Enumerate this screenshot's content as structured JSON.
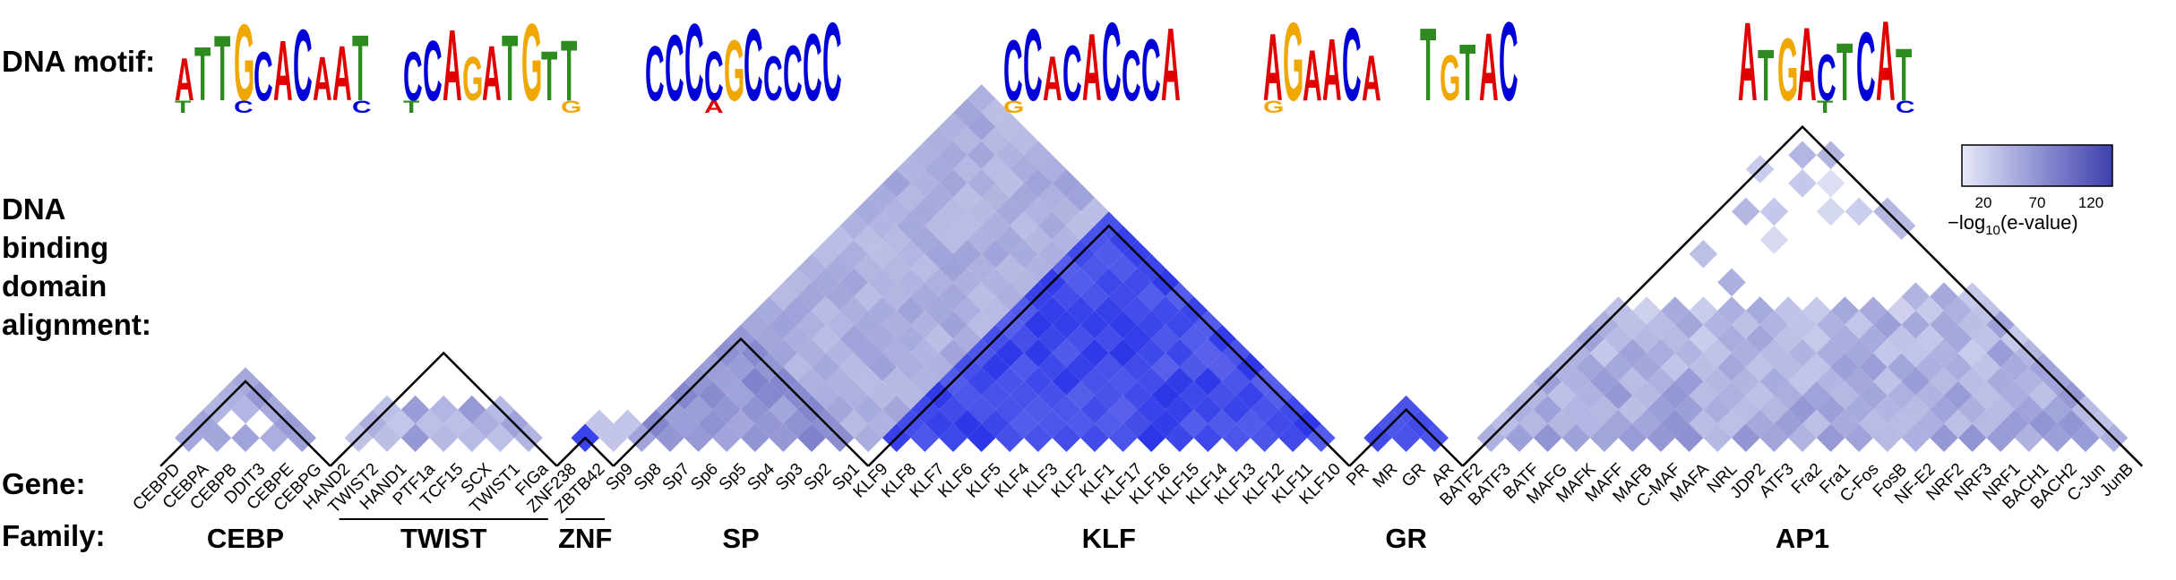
{
  "labels": {
    "motif": "DNA motif:",
    "alignment": [
      "DNA",
      "binding",
      "domain",
      "alignment:"
    ],
    "gene": "Gene:",
    "family": "Family:"
  },
  "legend": {
    "ticks": [
      "20",
      "70",
      "120"
    ],
    "title_main": "−log",
    "title_sub": "10",
    "title_tail": "(e-value)",
    "range": [
      0,
      140
    ],
    "colors": [
      "#e6e9f8",
      "#3d3fae"
    ]
  },
  "genes": [
    "CEBPD",
    "CEBPA",
    "CEBPB",
    "DDIT3",
    "CEBPE",
    "CEBPG",
    "HAND2",
    "TWIST2",
    "HAND1",
    "PTF1a",
    "TCF15",
    "SCX",
    "TWIST1",
    "FIGa",
    "ZNF238",
    "ZBTB42",
    "Sp9",
    "Sp8",
    "Sp7",
    "Sp6",
    "Sp5",
    "Sp4",
    "Sp3",
    "Sp2",
    "Sp1",
    "KLF9",
    "KLF8",
    "KLF7",
    "KLF6",
    "KLF5",
    "KLF4",
    "KLF3",
    "KLF2",
    "KLF1",
    "KLF17",
    "KLF16",
    "KLF15",
    "KLF14",
    "KLF13",
    "KLF12",
    "KLF11",
    "KLF10",
    "PR",
    "MR",
    "GR",
    "AR",
    "BATF2",
    "BATF3",
    "BATF",
    "MAFG",
    "MAFK",
    "MAFF",
    "MAFB",
    "C-MAF",
    "MAFA",
    "NRL",
    "JDP2",
    "ATF3",
    "Fra2",
    "Fra1",
    "C-Fos",
    "FosB",
    "NF-E2",
    "NRF2",
    "NRF3",
    "NRF1",
    "BACH1",
    "BACH2",
    "C-Jun",
    "JunB"
  ],
  "families": [
    {
      "name": "CEBP",
      "start": 0,
      "end": 5,
      "underline": false
    },
    {
      "name": "TWIST",
      "start": 6,
      "end": 13,
      "underline": true
    },
    {
      "name": "ZNF",
      "start": 14,
      "end": 15,
      "underline": true
    },
    {
      "name": "SP",
      "start": 16,
      "end": 24,
      "underline": false
    },
    {
      "name": "KLF",
      "start": 25,
      "end": 41,
      "underline": false
    },
    {
      "name": "GR",
      "start": 42,
      "end": 45,
      "underline": false
    },
    {
      "name": "AP1",
      "start": 46,
      "end": 69,
      "underline": false
    }
  ],
  "motifs": [
    {
      "name": "CEBP",
      "letters": [
        [
          "A",
          "T"
        ],
        [
          "T"
        ],
        [
          "T"
        ],
        [
          "G",
          "C"
        ],
        [
          "C"
        ],
        [
          "A"
        ],
        [
          "C"
        ],
        [
          "A"
        ],
        [
          "A"
        ],
        [
          "T",
          "C"
        ]
      ]
    },
    {
      "name": "TWIST",
      "letters": [
        [
          "C",
          "T"
        ],
        [
          "C"
        ],
        [
          "A"
        ],
        [
          "G"
        ],
        [
          "A"
        ],
        [
          "T"
        ],
        [
          "G"
        ],
        [
          "T"
        ],
        [
          "T",
          "G"
        ]
      ]
    },
    {
      "name": "SP",
      "letters": [
        [
          "C"
        ],
        [
          "C"
        ],
        [
          "C"
        ],
        [
          "C",
          "A"
        ],
        [
          "G"
        ],
        [
          "C"
        ],
        [
          "C"
        ],
        [
          "C"
        ],
        [
          "C"
        ],
        [
          "C"
        ]
      ]
    },
    {
      "name": "KLF",
      "letters": [
        [
          "C",
          "G"
        ],
        [
          "C"
        ],
        [
          "A"
        ],
        [
          "C"
        ],
        [
          "A"
        ],
        [
          "C"
        ],
        [
          "C"
        ],
        [
          "C"
        ],
        [
          "A"
        ]
      ]
    },
    {
      "name": "GR",
      "letters": [
        [
          "A",
          "G"
        ],
        [
          "G"
        ],
        [
          "A"
        ],
        [
          "A"
        ],
        [
          "C"
        ],
        [
          "A"
        ]
      ]
    },
    {
      "name": "GR2",
      "letters": [
        [
          "T"
        ],
        [
          "G"
        ],
        [
          "T"
        ],
        [
          "A"
        ],
        [
          "C"
        ]
      ]
    },
    {
      "name": "AP1",
      "letters": [
        [
          "A"
        ],
        [
          "T"
        ],
        [
          "G"
        ],
        [
          "A"
        ],
        [
          "C",
          "T"
        ],
        [
          "T"
        ],
        [
          "C"
        ],
        [
          "A"
        ],
        [
          "T",
          "C"
        ]
      ]
    }
  ],
  "matrix": {
    "blocks": [
      {
        "start": 0,
        "end": 5,
        "level": 55,
        "gaps": [
          [
            1,
            3
          ],
          [
            2,
            4
          ]
        ]
      },
      {
        "start": 6,
        "end": 13,
        "level": 50,
        "sparse": true
      },
      {
        "start": 14,
        "end": 15,
        "level": 125
      },
      {
        "start": 16,
        "end": 24,
        "level": 70
      },
      {
        "start": 25,
        "end": 41,
        "level": 115
      },
      {
        "start": 42,
        "end": 45,
        "level": 120
      },
      {
        "start": 46,
        "end": 69,
        "level": 55,
        "sparse": true
      }
    ],
    "cross_level": 35
  }
}
